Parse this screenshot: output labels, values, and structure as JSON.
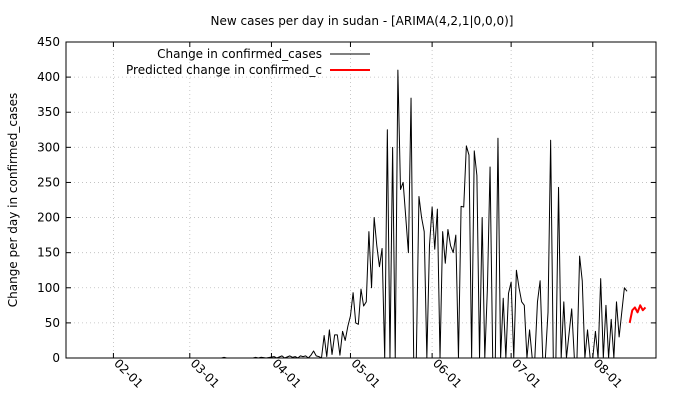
{
  "chart_data": {
    "type": "line",
    "title": "New cases per day in sudan -  [ARIMA(4,2,1|0,0,0)]",
    "xlabel": "",
    "ylabel": "Change per day in confirmed_cases",
    "ylim": [
      0,
      450
    ],
    "xlim": [
      "2020-01-14",
      "2020-08-25"
    ],
    "y_ticks": [
      0,
      50,
      100,
      150,
      200,
      250,
      300,
      350,
      400,
      450
    ],
    "x_ticks": [
      {
        "date": "2020-02-01",
        "label": "02-01"
      },
      {
        "date": "2020-03-01",
        "label": "03-01"
      },
      {
        "date": "2020-04-01",
        "label": "04-01"
      },
      {
        "date": "2020-05-01",
        "label": "05-01"
      },
      {
        "date": "2020-06-01",
        "label": "06-01"
      },
      {
        "date": "2020-07-01",
        "label": "07-01"
      },
      {
        "date": "2020-08-01",
        "label": "08-01"
      }
    ],
    "grid": true,
    "legend_position": "top-left",
    "series": [
      {
        "name": "Change in confirmed_cases",
        "color": "#000000",
        "points": [
          [
            "2020-01-22",
            0
          ],
          [
            "2020-03-13",
            0
          ],
          [
            "2020-03-14",
            1
          ],
          [
            "2020-03-15",
            0
          ],
          [
            "2020-03-25",
            0
          ],
          [
            "2020-03-26",
            1
          ],
          [
            "2020-03-27",
            0
          ],
          [
            "2020-03-28",
            1
          ],
          [
            "2020-03-30",
            0
          ],
          [
            "2020-04-02",
            2
          ],
          [
            "2020-04-03",
            0
          ],
          [
            "2020-04-05",
            3
          ],
          [
            "2020-04-06",
            0
          ],
          [
            "2020-04-08",
            3
          ],
          [
            "2020-04-09",
            1
          ],
          [
            "2020-04-10",
            2
          ],
          [
            "2020-04-11",
            0
          ],
          [
            "2020-04-12",
            3
          ],
          [
            "2020-04-13",
            2
          ],
          [
            "2020-04-14",
            3
          ],
          [
            "2020-04-15",
            0
          ],
          [
            "2020-04-16",
            4
          ],
          [
            "2020-04-17",
            10
          ],
          [
            "2020-04-18",
            3
          ],
          [
            "2020-04-19",
            2
          ],
          [
            "2020-04-20",
            0
          ],
          [
            "2020-04-21",
            32
          ],
          [
            "2020-04-22",
            2
          ],
          [
            "2020-04-23",
            40
          ],
          [
            "2020-04-24",
            5
          ],
          [
            "2020-04-25",
            33
          ],
          [
            "2020-04-26",
            33
          ],
          [
            "2020-04-27",
            4
          ],
          [
            "2020-04-28",
            38
          ],
          [
            "2020-04-29",
            25
          ],
          [
            "2020-04-30",
            45
          ],
          [
            "2020-05-01",
            60
          ],
          [
            "2020-05-02",
            93
          ],
          [
            "2020-05-03",
            50
          ],
          [
            "2020-05-04",
            48
          ],
          [
            "2020-05-05",
            98
          ],
          [
            "2020-05-06",
            74
          ],
          [
            "2020-05-07",
            80
          ],
          [
            "2020-05-08",
            180
          ],
          [
            "2020-05-09",
            100
          ],
          [
            "2020-05-10",
            200
          ],
          [
            "2020-05-11",
            160
          ],
          [
            "2020-05-12",
            130
          ],
          [
            "2020-05-13",
            156
          ],
          [
            "2020-05-14",
            0
          ],
          [
            "2020-05-15",
            325
          ],
          [
            "2020-05-16",
            0
          ],
          [
            "2020-05-17",
            300
          ],
          [
            "2020-05-18",
            0
          ],
          [
            "2020-05-19",
            410
          ],
          [
            "2020-05-20",
            240
          ],
          [
            "2020-05-21",
            250
          ],
          [
            "2020-05-22",
            200
          ],
          [
            "2020-05-23",
            150
          ],
          [
            "2020-05-24",
            370
          ],
          [
            "2020-05-25",
            0
          ],
          [
            "2020-05-26",
            0
          ],
          [
            "2020-05-27",
            230
          ],
          [
            "2020-05-28",
            200
          ],
          [
            "2020-05-29",
            180
          ],
          [
            "2020-05-30",
            0
          ],
          [
            "2020-05-31",
            160
          ],
          [
            "2020-06-01",
            215
          ],
          [
            "2020-06-02",
            155
          ],
          [
            "2020-06-03",
            212
          ],
          [
            "2020-06-04",
            0
          ],
          [
            "2020-06-05",
            180
          ],
          [
            "2020-06-06",
            135
          ],
          [
            "2020-06-07",
            183
          ],
          [
            "2020-06-08",
            160
          ],
          [
            "2020-06-09",
            150
          ],
          [
            "2020-06-10",
            175
          ],
          [
            "2020-06-11",
            0
          ],
          [
            "2020-06-12",
            216
          ],
          [
            "2020-06-13",
            215
          ],
          [
            "2020-06-14",
            302
          ],
          [
            "2020-06-15",
            289
          ],
          [
            "2020-06-16",
            0
          ],
          [
            "2020-06-17",
            295
          ],
          [
            "2020-06-18",
            260
          ],
          [
            "2020-06-19",
            0
          ],
          [
            "2020-06-20",
            200
          ],
          [
            "2020-06-21",
            0
          ],
          [
            "2020-06-22",
            100
          ],
          [
            "2020-06-23",
            272
          ],
          [
            "2020-06-24",
            0
          ],
          [
            "2020-06-25",
            0
          ],
          [
            "2020-06-26",
            313
          ],
          [
            "2020-06-27",
            0
          ],
          [
            "2020-06-28",
            85
          ],
          [
            "2020-06-29",
            0
          ],
          [
            "2020-06-30",
            92
          ],
          [
            "2020-07-01",
            108
          ],
          [
            "2020-07-02",
            0
          ],
          [
            "2020-07-03",
            125
          ],
          [
            "2020-07-04",
            100
          ],
          [
            "2020-07-05",
            80
          ],
          [
            "2020-07-06",
            75
          ],
          [
            "2020-07-07",
            0
          ],
          [
            "2020-07-08",
            40
          ],
          [
            "2020-07-09",
            0
          ],
          [
            "2020-07-10",
            0
          ],
          [
            "2020-07-11",
            80
          ],
          [
            "2020-07-12",
            110
          ],
          [
            "2020-07-13",
            0
          ],
          [
            "2020-07-14",
            0
          ],
          [
            "2020-07-15",
            65
          ],
          [
            "2020-07-16",
            310
          ],
          [
            "2020-07-17",
            0
          ],
          [
            "2020-07-18",
            0
          ],
          [
            "2020-07-19",
            243
          ],
          [
            "2020-07-20",
            0
          ],
          [
            "2020-07-21",
            80
          ],
          [
            "2020-07-22",
            0
          ],
          [
            "2020-07-23",
            35
          ],
          [
            "2020-07-24",
            70
          ],
          [
            "2020-07-25",
            0
          ],
          [
            "2020-07-26",
            0
          ],
          [
            "2020-07-27",
            145
          ],
          [
            "2020-07-28",
            110
          ],
          [
            "2020-07-29",
            0
          ],
          [
            "2020-07-30",
            40
          ],
          [
            "2020-07-31",
            0
          ],
          [
            "2020-08-01",
            0
          ],
          [
            "2020-08-02",
            38
          ],
          [
            "2020-08-03",
            0
          ],
          [
            "2020-08-04",
            113
          ],
          [
            "2020-08-05",
            0
          ],
          [
            "2020-08-06",
            75
          ],
          [
            "2020-08-07",
            0
          ],
          [
            "2020-08-08",
            55
          ],
          [
            "2020-08-09",
            0
          ],
          [
            "2020-08-10",
            80
          ],
          [
            "2020-08-11",
            30
          ],
          [
            "2020-08-12",
            65
          ],
          [
            "2020-08-13",
            100
          ],
          [
            "2020-08-14",
            95
          ]
        ]
      },
      {
        "name": "Predicted change in confirmed_c",
        "color": "#ff0000",
        "points": [
          [
            "2020-08-15",
            50
          ],
          [
            "2020-08-16",
            68
          ],
          [
            "2020-08-17",
            72
          ],
          [
            "2020-08-18",
            65
          ],
          [
            "2020-08-19",
            75
          ],
          [
            "2020-08-20",
            68
          ],
          [
            "2020-08-21",
            72
          ]
        ]
      }
    ]
  }
}
